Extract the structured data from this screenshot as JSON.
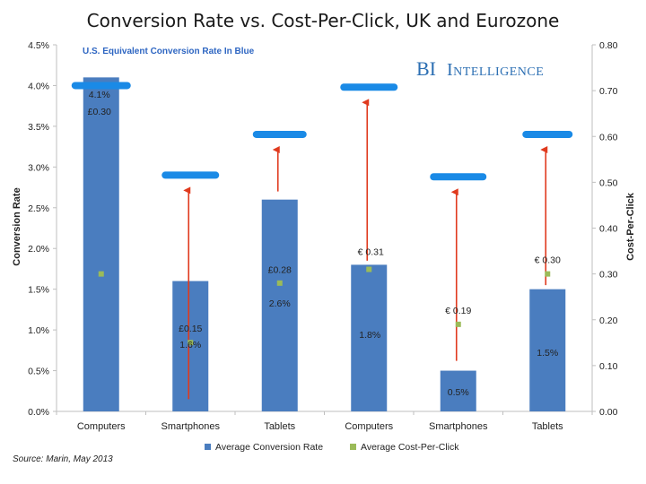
{
  "chart_data": {
    "type": "bar",
    "title": "Conversion Rate vs. Cost-Per-Click, UK and Eurozone",
    "note": "U.S. Equivalent Conversion Rate In Blue",
    "brand": {
      "first": "BI",
      "second": "Intelligence"
    },
    "categories": [
      "Computers",
      "Smartphones",
      "Tablets",
      "Computers",
      "Smartphones",
      "Tablets"
    ],
    "series": [
      {
        "name": "Average Conversion Rate",
        "axis": "left",
        "values": [
          4.1,
          1.6,
          2.6,
          1.8,
          0.5,
          1.5
        ]
      },
      {
        "name": "Average Cost-Per-Click",
        "axis": "right",
        "values": [
          0.3,
          0.15,
          0.28,
          0.31,
          0.19,
          0.3
        ]
      },
      {
        "name": "U.S. Equivalent Conversion Rate",
        "axis": "left",
        "values": [
          4.0,
          2.9,
          3.4,
          3.98,
          2.88,
          3.4
        ]
      }
    ],
    "rate_labels": [
      "4.1%",
      "1.6%",
      "2.6%",
      "1.8%",
      "0.5%",
      "1.5%"
    ],
    "cpc_labels": [
      "£0.30",
      "£0.15",
      "£0.28",
      "€ 0.31",
      "€ 0.19",
      "€ 0.30"
    ],
    "ylabel": "Conversion Rate",
    "y2label": "Cost-Per-Click",
    "ylim": [
      0,
      4.5
    ],
    "y2lim": [
      0,
      0.8
    ],
    "yticks": [
      "0.0%",
      "0.5%",
      "1.0%",
      "1.5%",
      "2.0%",
      "2.5%",
      "3.0%",
      "3.5%",
      "4.0%",
      "4.5%"
    ],
    "y2ticks": [
      "0.00",
      "0.10",
      "0.20",
      "0.30",
      "0.40",
      "0.50",
      "0.60",
      "0.70",
      "0.80"
    ],
    "legend_position": "bottom",
    "grid": false,
    "source": "Source: Marin, May 2013",
    "colors": {
      "bar": "#4a7dbf",
      "cpc": "#9bbb59",
      "us_line": "#1a8ae6",
      "arrow": "#e03a1e"
    }
  }
}
